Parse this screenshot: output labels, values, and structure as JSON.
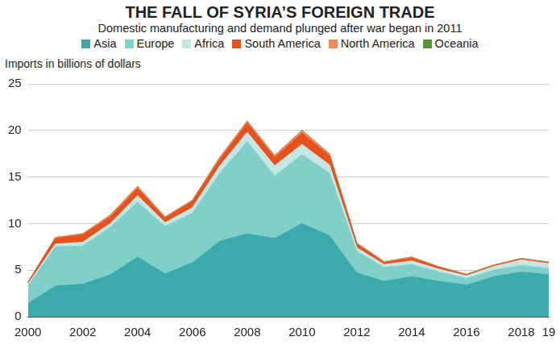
{
  "chart_data": {
    "type": "area",
    "title": "THE FALL OF SYRIA’S FOREIGN TRADE",
    "subtitle": "Domestic manufacturing and demand plunged after war began in 2011",
    "y_label": "Imports in billions of dollars",
    "categories": [
      "2000",
      null,
      "2002",
      null,
      "2004",
      null,
      "2006",
      null,
      "2008",
      null,
      "2010",
      null,
      "2012",
      null,
      "2014",
      null,
      "2016",
      null,
      "2018",
      "19"
    ],
    "series": [
      {
        "name": "Asia",
        "color": "#3aabaa",
        "values": [
          1.4,
          3.3,
          3.5,
          4.5,
          6.4,
          4.6,
          5.8,
          8.1,
          8.9,
          8.4,
          10.0,
          8.7,
          4.7,
          3.8,
          4.3,
          3.8,
          3.4,
          4.3,
          4.8,
          4.5
        ]
      },
      {
        "name": "Europe",
        "color": "#80cfcb",
        "values": [
          1.9,
          4.2,
          4.1,
          5.1,
          5.9,
          5.1,
          5.3,
          7.3,
          9.9,
          6.7,
          7.4,
          6.7,
          2.3,
          1.5,
          1.3,
          1.0,
          0.7,
          0.7,
          0.7,
          0.7
        ]
      },
      {
        "name": "Africa",
        "color": "#c3e7e3",
        "values": [
          0.2,
          0.3,
          0.4,
          0.4,
          0.7,
          0.4,
          0.6,
          0.8,
          1.0,
          1.1,
          1.1,
          0.9,
          0.4,
          0.3,
          0.4,
          0.3,
          0.3,
          0.4,
          0.6,
          0.5
        ]
      },
      {
        "name": "South America",
        "color": "#e8501e",
        "values": [
          0.15,
          0.6,
          0.8,
          0.7,
          0.8,
          0.5,
          0.7,
          0.7,
          1.0,
          0.9,
          1.2,
          1.0,
          0.4,
          0.2,
          0.3,
          0.2,
          0.1,
          0.1,
          0.1,
          0.1
        ]
      },
      {
        "name": "North America",
        "color": "#f08a5a",
        "values": [
          0.05,
          0.1,
          0.1,
          0.2,
          0.2,
          0.1,
          0.1,
          0.2,
          0.2,
          0.2,
          0.3,
          0.2,
          0.1,
          0.1,
          0.1,
          0.05,
          0.05,
          0.05,
          0.05,
          0.05
        ]
      },
      {
        "name": "Oceania",
        "color": "#4f9a35",
        "values": [
          0.02,
          0.02,
          0.02,
          0.02,
          0.02,
          0.02,
          0.02,
          0.02,
          0.02,
          0.02,
          0.02,
          0.02,
          0.02,
          0.02,
          0.02,
          0.02,
          0.02,
          0.02,
          0.02,
          0.02
        ]
      }
    ],
    "ylim": [
      0,
      25
    ],
    "yticks": [
      0,
      5,
      10,
      15,
      20,
      25
    ],
    "grid": true,
    "stacked": true,
    "legend": "top"
  }
}
